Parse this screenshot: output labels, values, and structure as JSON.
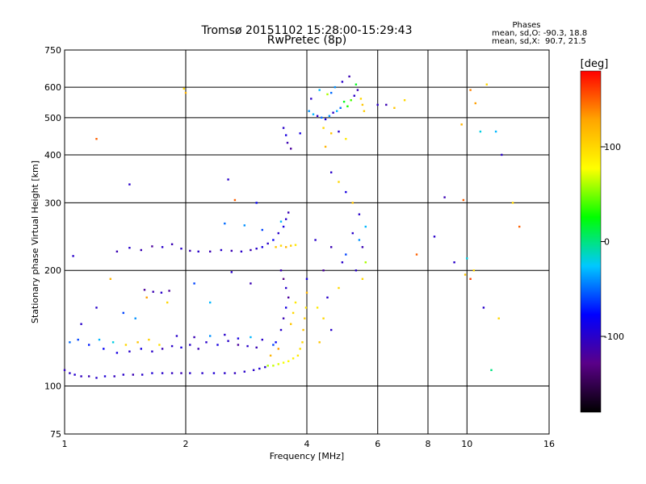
{
  "chart_data": {
    "type": "scatter",
    "title": "Tromsø 20151102 15:28:00-15:29:43",
    "subtitle": "RwPretec (8p)",
    "xlabel": "Frequency [MHz]",
    "ylabel": "Stationary phase Virtual Height [km]",
    "x_scale": "log",
    "y_scale": "log",
    "xlim": [
      1,
      16
    ],
    "ylim": [
      75,
      750
    ],
    "x_ticks": [
      1,
      2,
      4,
      6,
      8,
      10,
      16
    ],
    "y_ticks": [
      75,
      100,
      200,
      300,
      400,
      500,
      600,
      750
    ],
    "grid": true,
    "stats": {
      "heading": "Phases",
      "o_line": "mean, sd,O: -90.3, 18.8",
      "x_line": "mean, sd,X:  90.7, 21.5"
    },
    "colorbar": {
      "label": "[deg]",
      "ticks": [
        100,
        0,
        -100
      ],
      "range": [
        -180,
        180
      ],
      "colors": [
        "#000000",
        "#5a0088",
        "#0000ff",
        "#00c8ff",
        "#00ff00",
        "#ffff00",
        "#ffa500",
        "#ff0000"
      ]
    },
    "series": [
      {
        "points": [
          [
            1.0,
            110,
            -105
          ],
          [
            1.03,
            108,
            -100
          ],
          [
            1.06,
            107,
            -98
          ],
          [
            1.1,
            106,
            -105
          ],
          [
            1.15,
            106,
            -110
          ],
          [
            1.2,
            105,
            -100
          ],
          [
            1.26,
            106,
            -95
          ],
          [
            1.33,
            106,
            -105
          ],
          [
            1.4,
            107,
            -100
          ],
          [
            1.48,
            107,
            -110
          ],
          [
            1.56,
            107,
            -100
          ],
          [
            1.65,
            108,
            -95
          ],
          [
            1.75,
            108,
            -100
          ],
          [
            1.85,
            108,
            -105
          ],
          [
            1.95,
            108,
            -110
          ],
          [
            2.05,
            108,
            -100
          ],
          [
            2.2,
            108,
            -100
          ],
          [
            2.35,
            108,
            -95
          ],
          [
            2.5,
            108,
            -100
          ],
          [
            2.65,
            108,
            -105
          ],
          [
            2.8,
            109,
            -100
          ],
          [
            2.95,
            110,
            -100
          ],
          [
            3.05,
            111,
            -95
          ],
          [
            3.15,
            112,
            -100
          ],
          [
            3.2,
            113,
            60
          ],
          [
            3.3,
            113,
            65
          ],
          [
            3.4,
            114,
            70
          ],
          [
            3.5,
            115,
            75
          ],
          [
            3.6,
            116,
            80
          ],
          [
            3.7,
            118,
            85
          ],
          [
            3.8,
            120,
            90
          ],
          [
            3.85,
            125,
            95
          ],
          [
            3.9,
            130,
            100
          ],
          [
            3.92,
            140,
            110
          ],
          [
            3.95,
            150,
            105
          ],
          [
            3.98,
            160,
            95
          ],
          [
            4.0,
            175,
            120
          ],
          [
            3.25,
            120,
            120
          ],
          [
            3.35,
            130,
            -80
          ],
          [
            3.45,
            140,
            -100
          ],
          [
            3.5,
            150,
            -110
          ],
          [
            3.55,
            160,
            -90
          ],
          [
            3.6,
            170,
            -120
          ],
          [
            3.55,
            180,
            -100
          ],
          [
            3.5,
            190,
            -130
          ],
          [
            3.45,
            200,
            -110
          ],
          [
            3.65,
            145,
            110
          ],
          [
            3.7,
            155,
            100
          ],
          [
            3.75,
            165,
            90
          ],
          [
            3.4,
            125,
            130
          ],
          [
            3.3,
            128,
            -60
          ],
          [
            1.03,
            130,
            -50
          ],
          [
            1.08,
            132,
            -60
          ],
          [
            1.15,
            128,
            -70
          ],
          [
            1.25,
            125,
            -80
          ],
          [
            1.35,
            122,
            -90
          ],
          [
            1.45,
            123,
            -100
          ],
          [
            1.55,
            125,
            -90
          ],
          [
            1.65,
            123,
            -100
          ],
          [
            1.75,
            125,
            -110
          ],
          [
            1.85,
            127,
            -100
          ],
          [
            1.95,
            126,
            -90
          ],
          [
            2.05,
            128,
            -100
          ],
          [
            2.15,
            125,
            -110
          ],
          [
            2.25,
            130,
            -100
          ],
          [
            2.4,
            128,
            -90
          ],
          [
            2.55,
            131,
            -100
          ],
          [
            2.7,
            128,
            -120
          ],
          [
            2.85,
            127,
            -100
          ],
          [
            3.0,
            126,
            -110
          ],
          [
            1.22,
            132,
            -30
          ],
          [
            1.32,
            130,
            -20
          ],
          [
            1.42,
            128,
            100
          ],
          [
            1.52,
            130,
            110
          ],
          [
            1.62,
            132,
            105
          ],
          [
            1.72,
            128,
            95
          ],
          [
            1.9,
            135,
            -100
          ],
          [
            2.1,
            134,
            -110
          ],
          [
            2.3,
            135,
            -40
          ],
          [
            2.5,
            136,
            -100
          ],
          [
            2.7,
            133,
            -90
          ],
          [
            2.9,
            134,
            -30
          ],
          [
            3.1,
            132,
            -100
          ],
          [
            1.58,
            178,
            -120
          ],
          [
            1.66,
            176,
            -110
          ],
          [
            1.74,
            175,
            -100
          ],
          [
            1.82,
            177,
            -120
          ],
          [
            1.05,
            218,
            -100
          ],
          [
            1.35,
            224,
            -110
          ],
          [
            1.45,
            229,
            -100
          ],
          [
            1.55,
            226,
            -110
          ],
          [
            1.65,
            231,
            -120
          ],
          [
            1.75,
            230,
            -100
          ],
          [
            1.85,
            234,
            -110
          ],
          [
            1.95,
            228,
            -100
          ],
          [
            2.05,
            225,
            -110
          ],
          [
            2.15,
            224,
            -100
          ],
          [
            2.3,
            224,
            -110
          ],
          [
            2.45,
            226,
            -100
          ],
          [
            2.6,
            225,
            -110
          ],
          [
            2.75,
            224,
            -100
          ],
          [
            2.9,
            226,
            -110
          ],
          [
            3.0,
            228,
            -100
          ],
          [
            3.1,
            230,
            -90
          ],
          [
            3.2,
            235,
            -100
          ],
          [
            3.3,
            240,
            -80
          ],
          [
            3.4,
            250,
            -100
          ],
          [
            3.5,
            260,
            -90
          ],
          [
            3.55,
            272,
            -100
          ],
          [
            3.6,
            283,
            -110
          ],
          [
            3.35,
            230,
            110
          ],
          [
            3.45,
            232,
            100
          ],
          [
            3.55,
            230,
            120
          ],
          [
            3.65,
            232,
            105
          ],
          [
            3.75,
            233,
            90
          ],
          [
            2.5,
            265,
            -50
          ],
          [
            2.8,
            262,
            -40
          ],
          [
            3.1,
            255,
            -60
          ],
          [
            3.45,
            268,
            -30
          ],
          [
            3.5,
            470,
            -100
          ],
          [
            3.58,
            430,
            -110
          ],
          [
            3.65,
            415,
            -120
          ],
          [
            3.55,
            450,
            -90
          ],
          [
            4.05,
            520,
            -40
          ],
          [
            4.15,
            510,
            -30
          ],
          [
            4.25,
            505,
            -100
          ],
          [
            4.35,
            500,
            -50
          ],
          [
            4.45,
            495,
            -90
          ],
          [
            4.55,
            505,
            -40
          ],
          [
            4.65,
            515,
            -100
          ],
          [
            4.75,
            520,
            -30
          ],
          [
            4.85,
            530,
            -50
          ],
          [
            4.95,
            550,
            20
          ],
          [
            5.05,
            535,
            30
          ],
          [
            5.15,
            555,
            40
          ],
          [
            5.25,
            570,
            -100
          ],
          [
            5.35,
            590,
            -110
          ],
          [
            5.45,
            560,
            100
          ],
          [
            5.5,
            540,
            110
          ],
          [
            5.55,
            520,
            105
          ],
          [
            4.1,
            560,
            -100
          ],
          [
            4.3,
            590,
            -30
          ],
          [
            4.5,
            575,
            60
          ],
          [
            4.7,
            600,
            -40
          ],
          [
            4.9,
            620,
            -100
          ],
          [
            5.1,
            640,
            -110
          ],
          [
            5.3,
            610,
            20
          ],
          [
            4.6,
            580,
            -50
          ],
          [
            4.4,
            470,
            100
          ],
          [
            4.6,
            455,
            110
          ],
          [
            4.8,
            460,
            -100
          ],
          [
            5.0,
            440,
            90
          ],
          [
            4.45,
            420,
            120
          ],
          [
            4.6,
            360,
            -100
          ],
          [
            4.8,
            340,
            100
          ],
          [
            5.0,
            320,
            -90
          ],
          [
            5.2,
            300,
            110
          ],
          [
            5.4,
            280,
            -100
          ],
          [
            5.6,
            260,
            -30
          ],
          [
            5.2,
            250,
            -100
          ],
          [
            5.4,
            240,
            -40
          ],
          [
            5.5,
            230,
            -110
          ],
          [
            5.6,
            210,
            60
          ],
          [
            5.3,
            200,
            -100
          ],
          [
            5.5,
            190,
            100
          ],
          [
            5.0,
            220,
            -60
          ],
          [
            4.2,
            240,
            -100
          ],
          [
            4.6,
            230,
            -110
          ],
          [
            4.9,
            210,
            -100
          ],
          [
            4.4,
            200,
            -120
          ],
          [
            4.8,
            180,
            100
          ],
          [
            4.5,
            170,
            -100
          ],
          [
            4.0,
            190,
            -90
          ],
          [
            4.25,
            160,
            90
          ],
          [
            4.4,
            150,
            100
          ],
          [
            4.6,
            140,
            -100
          ],
          [
            4.3,
            130,
            110
          ],
          [
            1.3,
            190,
            120
          ],
          [
            1.6,
            170,
            130
          ],
          [
            1.8,
            165,
            100
          ],
          [
            2.1,
            185,
            -60
          ],
          [
            2.3,
            165,
            -30
          ],
          [
            2.6,
            198,
            -100
          ],
          [
            2.9,
            185,
            -110
          ],
          [
            1.2,
            160,
            -100
          ],
          [
            1.4,
            155,
            -60
          ],
          [
            1.1,
            145,
            -100
          ],
          [
            1.5,
            150,
            -40
          ],
          [
            1.2,
            440,
            150
          ],
          [
            1.45,
            335,
            -100
          ],
          [
            1.98,
            595,
            100
          ],
          [
            2.0,
            580,
            120
          ],
          [
            2.55,
            345,
            -100
          ],
          [
            2.65,
            305,
            150
          ],
          [
            3.0,
            300,
            -80
          ],
          [
            3.85,
            455,
            -90
          ],
          [
            6.0,
            540,
            -100
          ],
          [
            6.3,
            540,
            -110
          ],
          [
            6.6,
            530,
            110
          ],
          [
            7.0,
            555,
            100
          ],
          [
            7.5,
            220,
            150
          ],
          [
            8.3,
            245,
            -100
          ],
          [
            8.8,
            310,
            -110
          ],
          [
            9.3,
            210,
            -100
          ],
          [
            9.7,
            480,
            120
          ],
          [
            9.9,
            195,
            110
          ],
          [
            10.2,
            590,
            140
          ],
          [
            10.5,
            545,
            130
          ],
          [
            10.8,
            460,
            -20
          ],
          [
            11.2,
            610,
            100
          ],
          [
            11.8,
            460,
            -30
          ],
          [
            12.2,
            400,
            -100
          ],
          [
            13.0,
            300,
            100
          ],
          [
            13.5,
            260,
            150
          ],
          [
            9.8,
            305,
            150
          ],
          [
            10.0,
            215,
            -20
          ],
          [
            10.2,
            190,
            160
          ],
          [
            11.0,
            160,
            -100
          ],
          [
            11.5,
            110,
            0
          ],
          [
            12.0,
            150,
            100
          ],
          [
            10.4,
            200,
            100
          ]
        ]
      }
    ]
  }
}
